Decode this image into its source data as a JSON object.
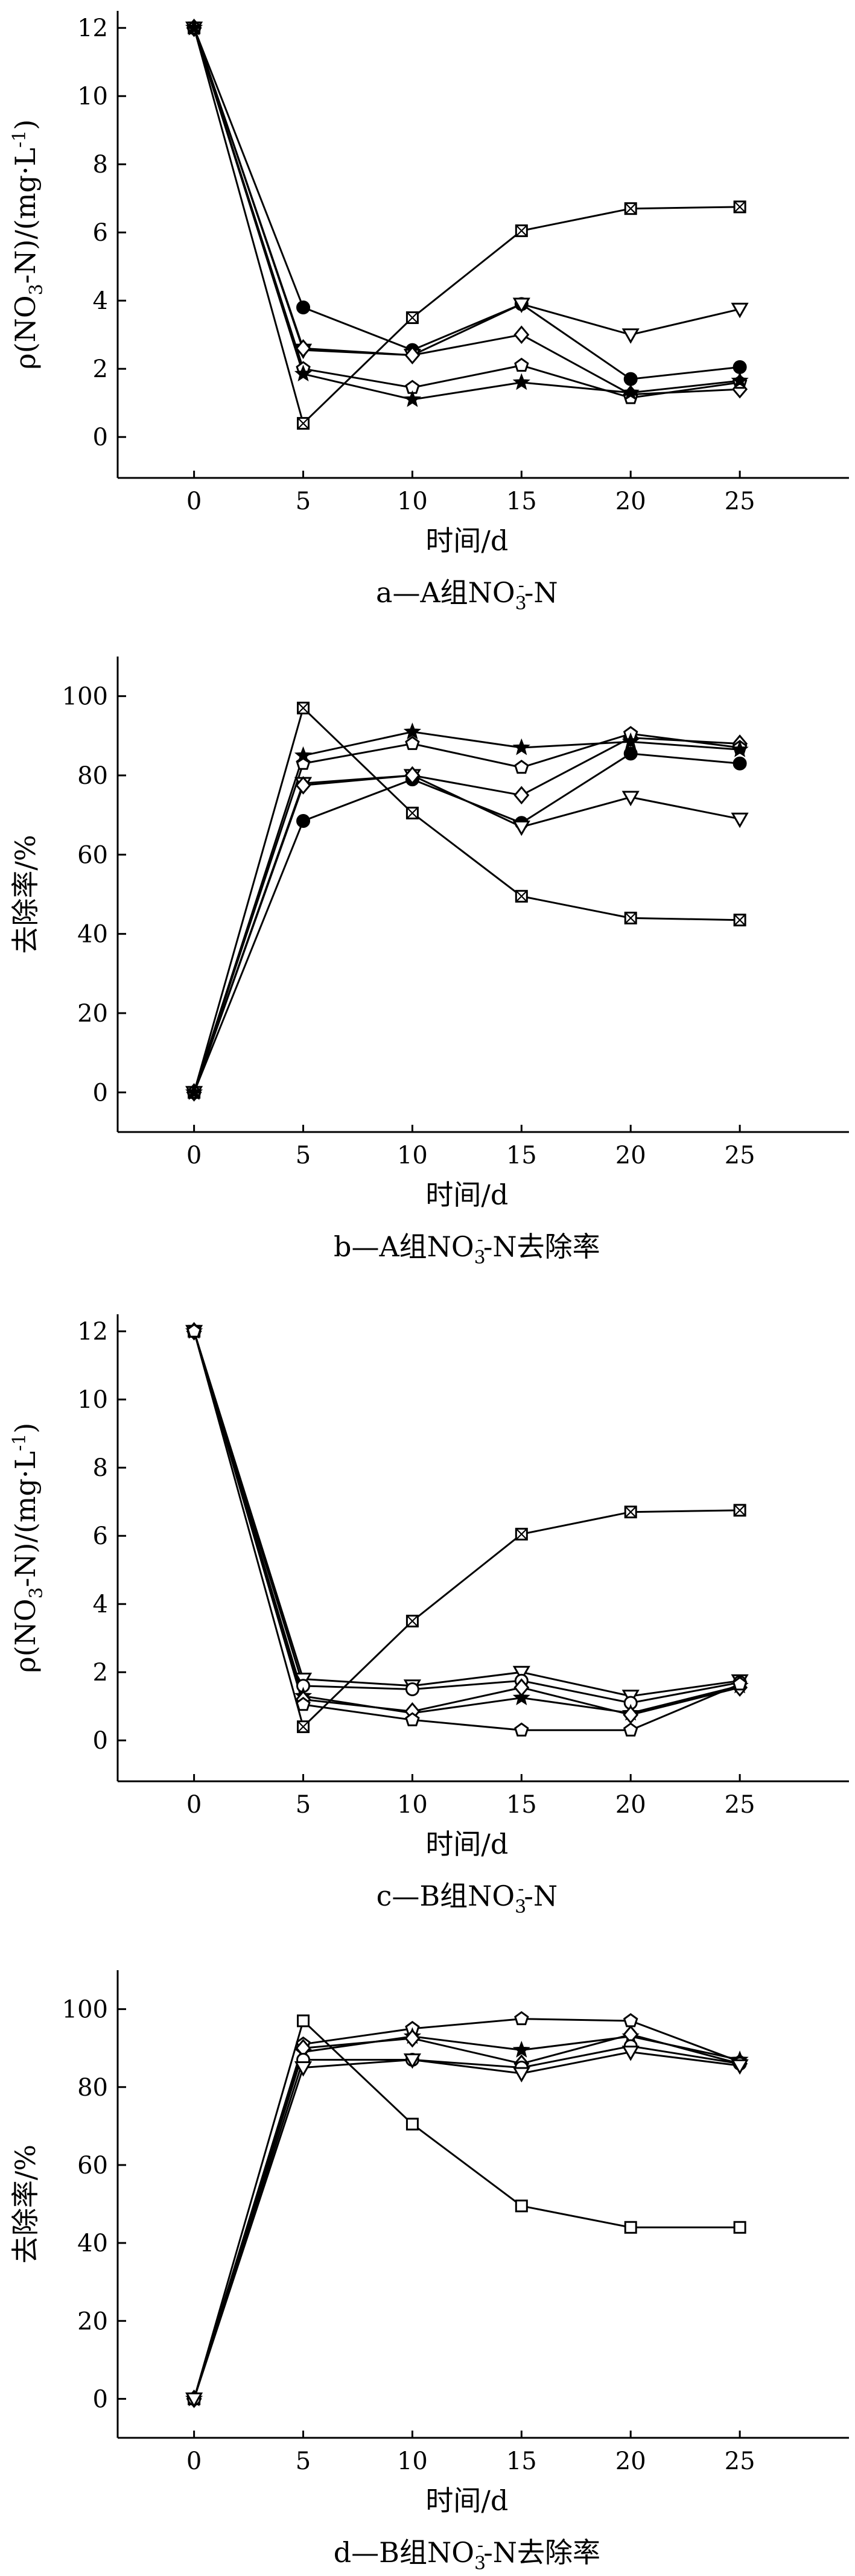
{
  "chart_data": [
    {
      "type": "line",
      "caption_prefix": "a—A组NO",
      "caption_sub": "3",
      "caption_sup": "-",
      "caption_suffix": "-N",
      "xlabel": "时间/d",
      "ylabel_prefix": "ρ(NO",
      "ylabel_sub": "3",
      "ylabel_mid": "-N)/(mg·L",
      "ylabel_sup": "-1",
      "ylabel_suffix": ")",
      "ylabel_plain": "",
      "x": [
        0,
        5,
        10,
        15,
        20,
        25
      ],
      "x_ticks": [
        "0",
        "5",
        "10",
        "15",
        "20",
        "25"
      ],
      "y_ticks": [
        "0",
        "2",
        "4",
        "6",
        "8",
        "10",
        "12"
      ],
      "xlim": [
        -3.5,
        30
      ],
      "ylim": [
        -1.2,
        12.5
      ],
      "series": [
        {
          "marker": "square-x",
          "values": [
            12,
            0.4,
            3.5,
            6.05,
            6.7,
            6.75
          ]
        },
        {
          "marker": "circle-filled",
          "values": [
            12,
            3.8,
            2.55,
            3.9,
            1.7,
            2.05
          ]
        },
        {
          "marker": "triangle-down",
          "values": [
            12,
            2.55,
            2.4,
            3.9,
            3.0,
            3.75
          ]
        },
        {
          "marker": "diamond",
          "values": [
            12,
            2.6,
            2.4,
            3.0,
            1.25,
            1.4
          ]
        },
        {
          "marker": "pentagon",
          "values": [
            12,
            2.0,
            1.45,
            2.1,
            1.15,
            1.6
          ]
        },
        {
          "marker": "star-filled",
          "values": [
            12,
            1.85,
            1.1,
            1.6,
            1.3,
            1.65
          ]
        }
      ]
    },
    {
      "type": "line",
      "caption_prefix": "b—A组NO",
      "caption_sub": "3",
      "caption_sup": "-",
      "caption_suffix": "-N去除率",
      "xlabel": "时间/d",
      "ylabel_prefix": "",
      "ylabel_sub": "",
      "ylabel_mid": "",
      "ylabel_sup": "",
      "ylabel_suffix": "",
      "ylabel_plain": "去除率/%",
      "x": [
        0,
        5,
        10,
        15,
        20,
        25
      ],
      "x_ticks": [
        "0",
        "5",
        "10",
        "15",
        "20",
        "25"
      ],
      "y_ticks": [
        "0",
        "20",
        "40",
        "60",
        "80",
        "100"
      ],
      "xlim": [
        -3.5,
        30
      ],
      "ylim": [
        -10,
        110
      ],
      "series": [
        {
          "marker": "square-x",
          "values": [
            0,
            97,
            70.5,
            49.5,
            44,
            43.5
          ]
        },
        {
          "marker": "circle-filled",
          "values": [
            0,
            68.5,
            79,
            68,
            85.5,
            83
          ]
        },
        {
          "marker": "triangle-down",
          "values": [
            0,
            78,
            80,
            67,
            74.5,
            69
          ]
        },
        {
          "marker": "diamond",
          "values": [
            0,
            77.5,
            80,
            75,
            89.5,
            88
          ]
        },
        {
          "marker": "pentagon",
          "values": [
            0,
            83,
            88,
            82,
            90.5,
            87
          ]
        },
        {
          "marker": "star-filled",
          "values": [
            0,
            85,
            91,
            87,
            88.5,
            86.5
          ]
        }
      ]
    },
    {
      "type": "line",
      "caption_prefix": "c—B组NO",
      "caption_sub": "3",
      "caption_sup": "-",
      "caption_suffix": "-N",
      "xlabel": "时间/d",
      "ylabel_prefix": "ρ(NO",
      "ylabel_sub": "3",
      "ylabel_mid": "-N)/(mg·L",
      "ylabel_sup": "-1",
      "ylabel_suffix": ")",
      "ylabel_plain": "",
      "x": [
        0,
        5,
        10,
        15,
        20,
        25
      ],
      "x_ticks": [
        "0",
        "5",
        "10",
        "15",
        "20",
        "25"
      ],
      "y_ticks": [
        "0",
        "2",
        "4",
        "6",
        "8",
        "10",
        "12"
      ],
      "xlim": [
        -3.5,
        30
      ],
      "ylim": [
        -1.2,
        12.5
      ],
      "series": [
        {
          "marker": "square-x",
          "values": [
            12,
            0.4,
            3.5,
            6.05,
            6.7,
            6.75
          ]
        },
        {
          "marker": "triangle-down",
          "values": [
            12,
            1.8,
            1.6,
            2.0,
            1.3,
            1.75
          ]
        },
        {
          "marker": "circle-open",
          "values": [
            12,
            1.6,
            1.5,
            1.75,
            1.1,
            1.7
          ]
        },
        {
          "marker": "star-filled",
          "values": [
            12,
            1.3,
            0.8,
            1.25,
            0.8,
            1.6
          ]
        },
        {
          "marker": "diamond",
          "values": [
            12,
            1.2,
            0.85,
            1.55,
            0.75,
            1.55
          ]
        },
        {
          "marker": "pentagon",
          "values": [
            12,
            1.05,
            0.6,
            0.3,
            0.3,
            1.65
          ]
        }
      ]
    },
    {
      "type": "line",
      "caption_prefix": "d—B组NO",
      "caption_sub": "3",
      "caption_sup": "-",
      "caption_suffix": "-N去除率",
      "xlabel": "时间/d",
      "ylabel_prefix": "",
      "ylabel_sub": "",
      "ylabel_mid": "",
      "ylabel_sup": "",
      "ylabel_suffix": "",
      "ylabel_plain": "去除率/%",
      "x": [
        0,
        5,
        10,
        15,
        20,
        25
      ],
      "x_ticks": [
        "0",
        "5",
        "10",
        "15",
        "20",
        "25"
      ],
      "y_ticks": [
        "0",
        "20",
        "40",
        "60",
        "80",
        "100"
      ],
      "xlim": [
        -3.5,
        30
      ],
      "ylim": [
        -10,
        110
      ],
      "series": [
        {
          "marker": "square",
          "values": [
            0,
            97,
            70.5,
            49.5,
            44,
            44
          ]
        },
        {
          "marker": "pentagon",
          "values": [
            0,
            91,
            95,
            97.5,
            97,
            86.5
          ]
        },
        {
          "marker": "star-filled",
          "values": [
            0,
            89,
            93,
            89.5,
            93,
            87
          ]
        },
        {
          "marker": "diamond",
          "values": [
            0,
            90,
            92.5,
            86,
            93.5,
            86
          ]
        },
        {
          "marker": "circle-open",
          "values": [
            0,
            87,
            87,
            85,
            90.5,
            86
          ]
        },
        {
          "marker": "triangle-down",
          "values": [
            0,
            85,
            87,
            83.5,
            89,
            85.5
          ]
        }
      ]
    }
  ]
}
